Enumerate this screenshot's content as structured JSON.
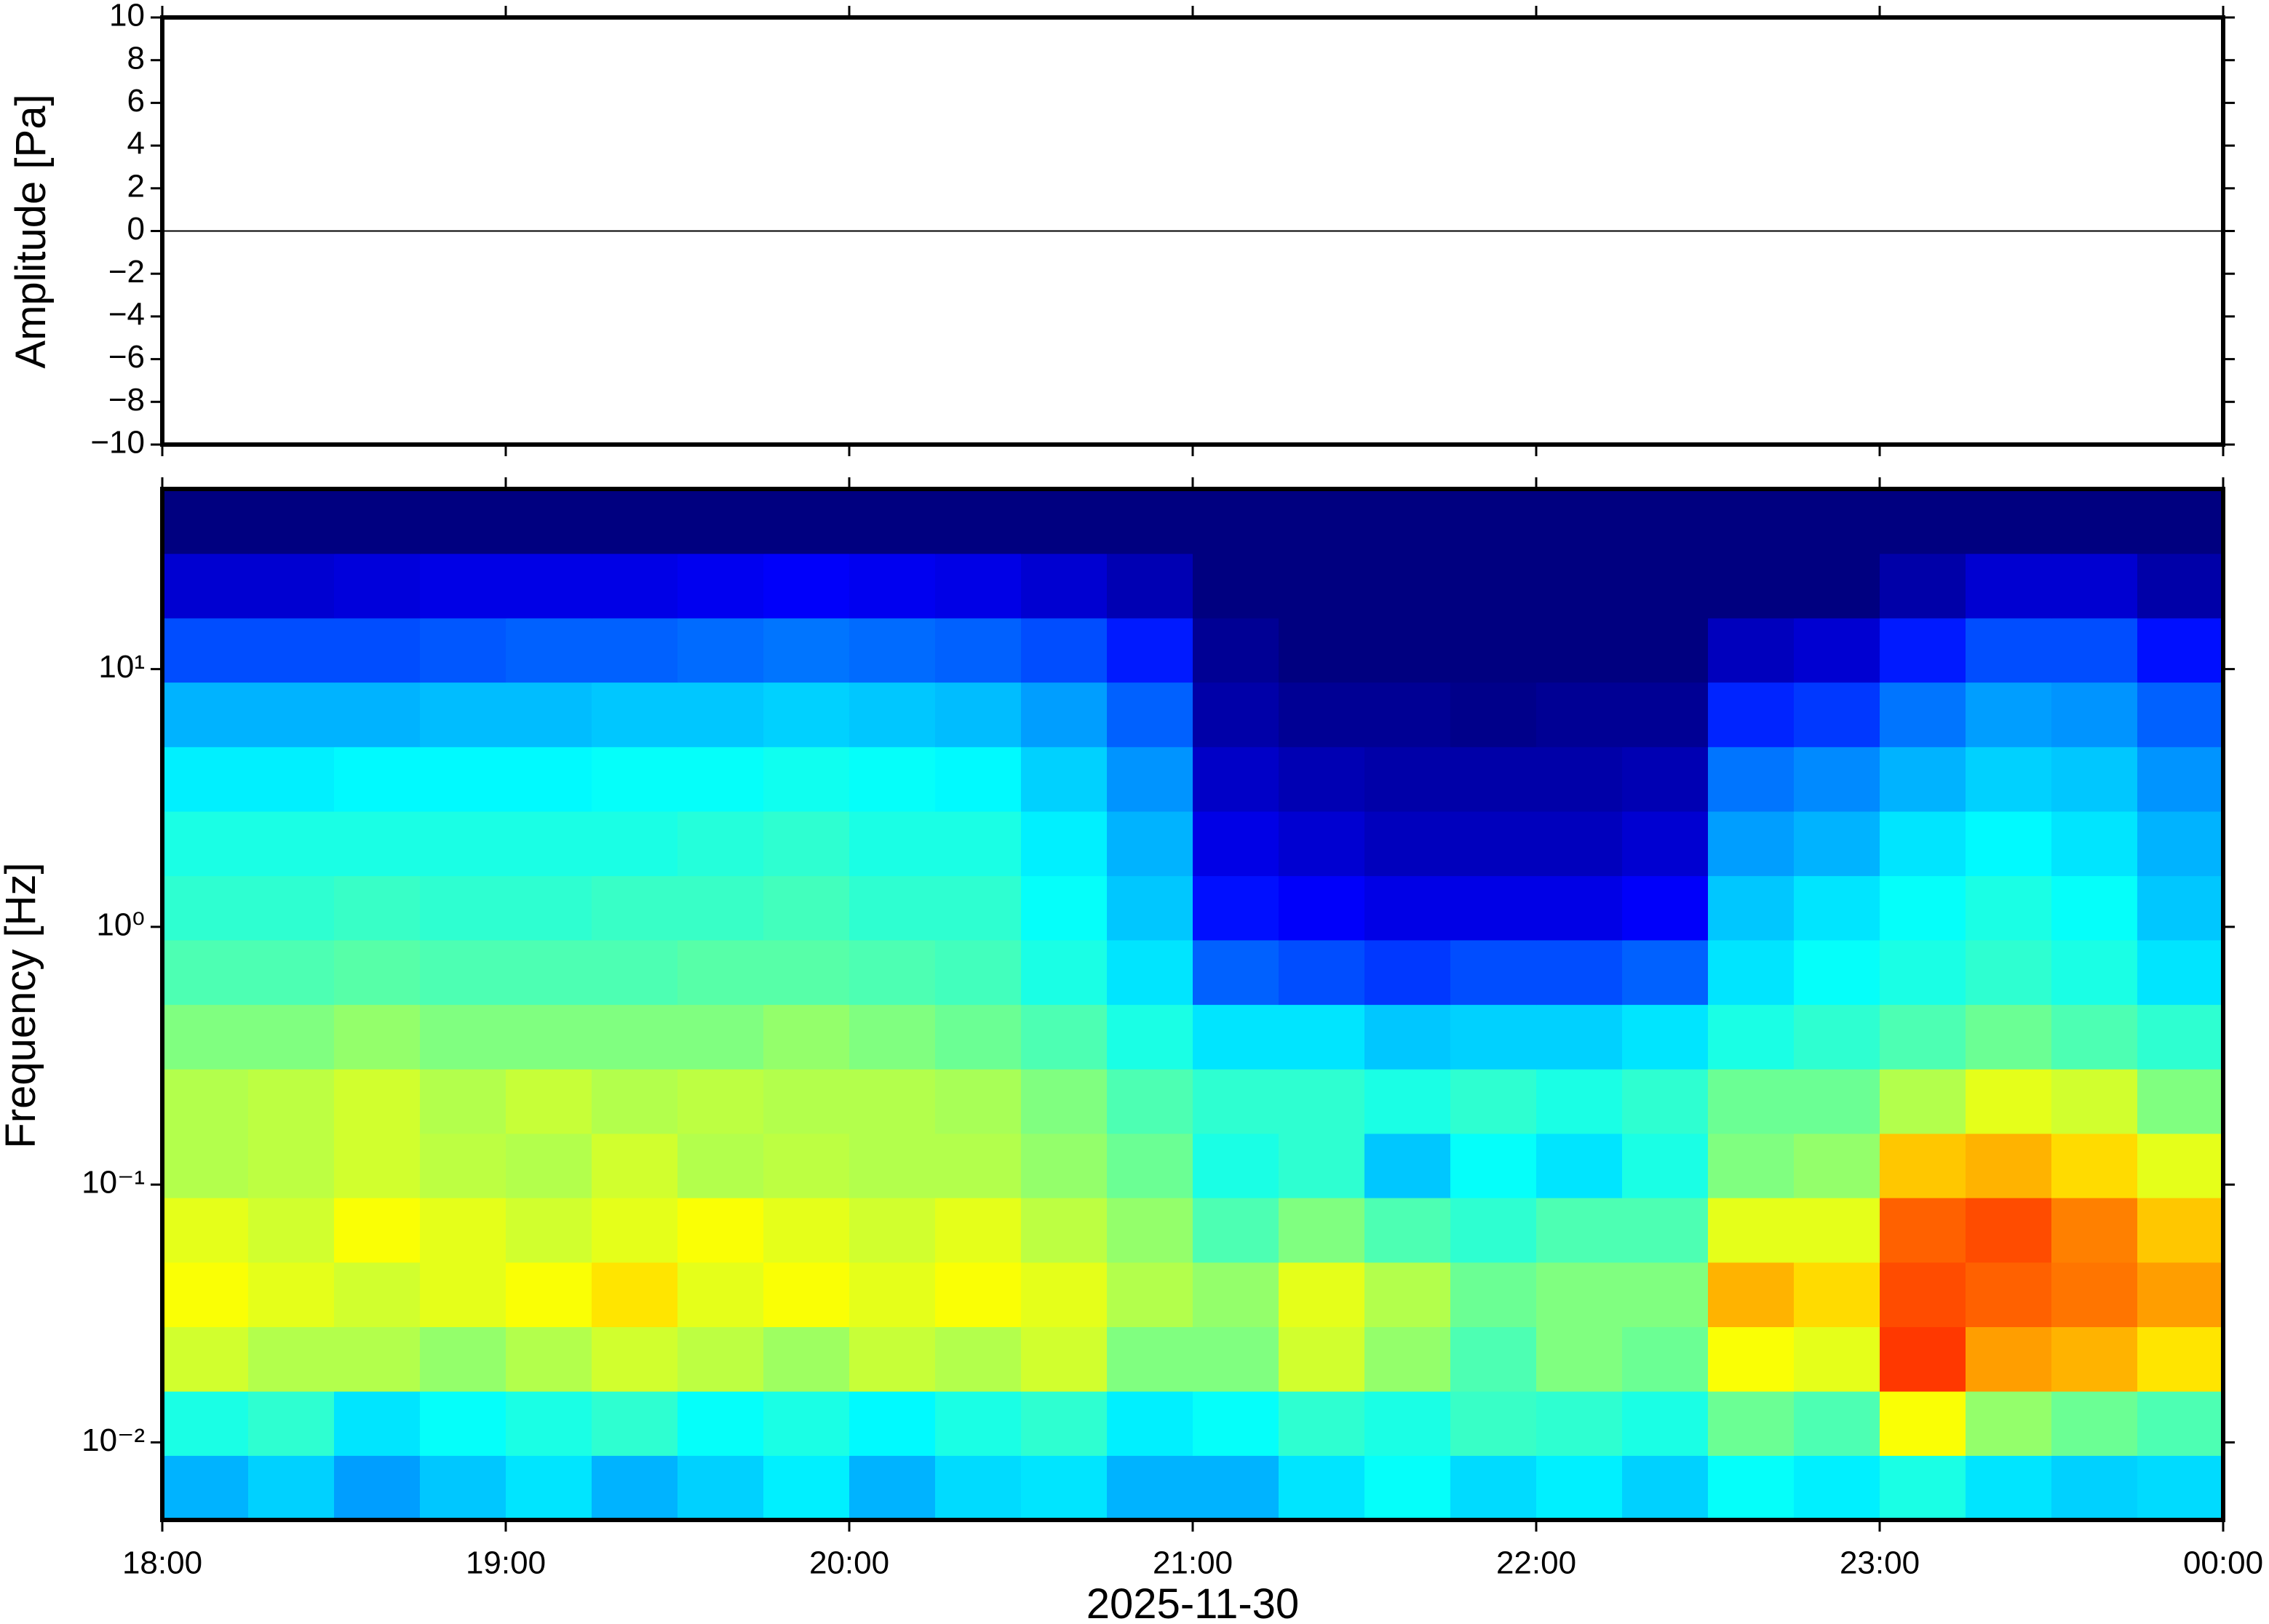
{
  "chart_data": [
    {
      "type": "line",
      "ylabel": "Amplitude [Pa]",
      "color": "#000000",
      "xlim": [
        0,
        360
      ],
      "xticks": [
        0,
        60,
        120,
        180,
        240,
        300,
        360
      ],
      "ylim": [
        -10,
        10
      ],
      "yticks": [
        {
          "value": -10,
          "label": "−10"
        },
        {
          "value": -8,
          "label": "−8"
        },
        {
          "value": -6,
          "label": "−6"
        },
        {
          "value": -4,
          "label": "−4"
        },
        {
          "value": -2,
          "label": "−2"
        },
        0,
        2,
        4,
        6,
        8,
        10
      ],
      "x": [
        0,
        30,
        60,
        90,
        120,
        150,
        180,
        210,
        240,
        270,
        300,
        330,
        360
      ],
      "values": [
        0,
        0,
        0,
        0,
        0,
        0,
        0,
        0,
        0,
        0,
        0,
        0,
        0
      ]
    },
    {
      "type": "heatmap",
      "ylabel": "Frequency [Hz]",
      "xlabel": "2025-11-30",
      "colormap": "jet",
      "log_y": true,
      "xlim": [
        0,
        360
      ],
      "xticks": [
        {
          "value": 0,
          "label": "18:00"
        },
        {
          "value": 60,
          "label": "19:00"
        },
        {
          "value": 120,
          "label": "20:00"
        },
        {
          "value": 180,
          "label": "21:00"
        },
        {
          "value": 240,
          "label": "22:00"
        },
        {
          "value": 300,
          "label": "23:00"
        },
        {
          "value": 360,
          "label": "00:00"
        }
      ],
      "ylim": [
        0.005,
        50
      ],
      "yticks": [
        {
          "value": 0.01,
          "label": "10⁻²"
        },
        {
          "value": 0.1,
          "label": "10⁻¹"
        },
        {
          "value": 1,
          "label": "10⁰"
        },
        {
          "value": 10,
          "label": "10¹"
        }
      ],
      "x_edges": [
        0,
        15,
        30,
        45,
        60,
        75,
        90,
        105,
        120,
        135,
        150,
        165,
        180,
        195,
        210,
        225,
        240,
        255,
        270,
        285,
        300,
        315,
        330,
        345,
        360
      ],
      "y_edges": [
        0.005,
        0.0089,
        0.0158,
        0.0281,
        0.05,
        0.089,
        0.158,
        0.281,
        0.5,
        0.89,
        1.58,
        2.81,
        5,
        8.9,
        15.8,
        28.1,
        50
      ],
      "z": [
        [
          0.3,
          0.33,
          0.28,
          0.32,
          0.35,
          0.3,
          0.33,
          0.36,
          0.3,
          0.34,
          0.35,
          0.3,
          0.3,
          0.35,
          0.38,
          0.34,
          0.36,
          0.33,
          0.38,
          0.36,
          0.4,
          0.35,
          0.33,
          0.34
        ],
        [
          0.4,
          0.42,
          0.35,
          0.38,
          0.4,
          0.42,
          0.38,
          0.4,
          0.37,
          0.4,
          0.42,
          0.36,
          0.38,
          0.42,
          0.4,
          0.43,
          0.42,
          0.4,
          0.48,
          0.45,
          0.62,
          0.52,
          0.48,
          0.45
        ],
        [
          0.58,
          0.55,
          0.55,
          0.52,
          0.55,
          0.58,
          0.56,
          0.53,
          0.57,
          0.55,
          0.58,
          0.5,
          0.5,
          0.58,
          0.52,
          0.45,
          0.5,
          0.48,
          0.62,
          0.6,
          0.82,
          0.72,
          0.7,
          0.65
        ],
        [
          0.62,
          0.6,
          0.58,
          0.6,
          0.62,
          0.65,
          0.6,
          0.62,
          0.6,
          0.62,
          0.6,
          0.55,
          0.52,
          0.6,
          0.55,
          0.48,
          0.5,
          0.5,
          0.7,
          0.66,
          0.8,
          0.78,
          0.76,
          0.72
        ],
        [
          0.6,
          0.58,
          0.62,
          0.6,
          0.58,
          0.6,
          0.62,
          0.6,
          0.58,
          0.6,
          0.56,
          0.52,
          0.45,
          0.5,
          0.45,
          0.42,
          0.45,
          0.45,
          0.6,
          0.6,
          0.78,
          0.8,
          0.75,
          0.68
        ],
        [
          0.55,
          0.56,
          0.58,
          0.56,
          0.55,
          0.58,
          0.55,
          0.56,
          0.55,
          0.55,
          0.52,
          0.48,
          0.4,
          0.42,
          0.32,
          0.38,
          0.35,
          0.4,
          0.5,
          0.52,
          0.68,
          0.7,
          0.66,
          0.6
        ],
        [
          0.55,
          0.56,
          0.58,
          0.55,
          0.57,
          0.55,
          0.56,
          0.55,
          0.55,
          0.54,
          0.5,
          0.45,
          0.42,
          0.42,
          0.4,
          0.42,
          0.4,
          0.42,
          0.48,
          0.48,
          0.55,
          0.6,
          0.58,
          0.5
        ],
        [
          0.5,
          0.5,
          0.52,
          0.5,
          0.5,
          0.5,
          0.5,
          0.52,
          0.5,
          0.48,
          0.45,
          0.4,
          0.35,
          0.35,
          0.32,
          0.33,
          0.33,
          0.35,
          0.4,
          0.42,
          0.45,
          0.48,
          0.45,
          0.42
        ],
        [
          0.45,
          0.45,
          0.46,
          0.45,
          0.45,
          0.45,
          0.46,
          0.46,
          0.45,
          0.44,
          0.4,
          0.35,
          0.22,
          0.2,
          0.18,
          0.2,
          0.2,
          0.22,
          0.35,
          0.38,
          0.4,
          0.42,
          0.4,
          0.35
        ],
        [
          0.42,
          0.42,
          0.43,
          0.42,
          0.42,
          0.43,
          0.43,
          0.44,
          0.42,
          0.42,
          0.38,
          0.32,
          0.14,
          0.12,
          0.1,
          0.1,
          0.1,
          0.12,
          0.32,
          0.35,
          0.38,
          0.4,
          0.38,
          0.32
        ],
        [
          0.4,
          0.4,
          0.4,
          0.4,
          0.4,
          0.4,
          0.41,
          0.42,
          0.4,
          0.4,
          0.36,
          0.3,
          0.1,
          0.08,
          0.06,
          0.06,
          0.06,
          0.08,
          0.28,
          0.3,
          0.35,
          0.37,
          0.35,
          0.3
        ],
        [
          0.36,
          0.36,
          0.37,
          0.37,
          0.37,
          0.38,
          0.38,
          0.39,
          0.38,
          0.37,
          0.33,
          0.27,
          0.07,
          0.05,
          0.04,
          0.04,
          0.04,
          0.05,
          0.24,
          0.26,
          0.3,
          0.33,
          0.32,
          0.27
        ],
        [
          0.3,
          0.3,
          0.3,
          0.31,
          0.31,
          0.32,
          0.32,
          0.33,
          0.32,
          0.31,
          0.28,
          0.22,
          0.04,
          0.02,
          0.02,
          0.01,
          0.02,
          0.02,
          0.16,
          0.18,
          0.24,
          0.28,
          0.27,
          0.22
        ],
        [
          0.2,
          0.2,
          0.2,
          0.21,
          0.22,
          0.22,
          0.23,
          0.24,
          0.23,
          0.22,
          0.2,
          0.15,
          0.02,
          0,
          0,
          0,
          0,
          0,
          0.06,
          0.08,
          0.15,
          0.2,
          0.2,
          0.14
        ],
        [
          0.08,
          0.08,
          0.09,
          0.1,
          0.1,
          0.1,
          0.11,
          0.12,
          0.11,
          0.1,
          0.08,
          0.05,
          0,
          0,
          0,
          0,
          0,
          0,
          0,
          0,
          0.04,
          0.08,
          0.08,
          0.04
        ],
        [
          0,
          0,
          0,
          0,
          0,
          0,
          0,
          0,
          0,
          0,
          0,
          0,
          0,
          0,
          0,
          0,
          0,
          0,
          0,
          0,
          0,
          0,
          0,
          0
        ]
      ]
    }
  ]
}
